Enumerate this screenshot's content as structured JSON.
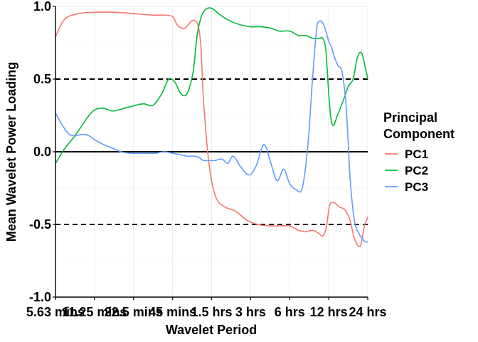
{
  "chart_data": {
    "type": "line",
    "title": "",
    "xlabel": "Wavelet Period",
    "ylabel": "Mean Wavelet Power Loading",
    "ylim": [
      -1.0,
      1.0
    ],
    "yticks": [
      -1.0,
      -0.5,
      0.0,
      0.5,
      1.0
    ],
    "ytick_labels": [
      "-1.0",
      "-0.5",
      "0.0",
      "0.5",
      "1.0"
    ],
    "xscale": "log2",
    "xlim_hours": [
      0.0938,
      24
    ],
    "xticks_hours": [
      0.09375,
      0.1875,
      0.375,
      0.75,
      1.5,
      3,
      6,
      12,
      24
    ],
    "xtick_labels": [
      "5.63 mins",
      "11.25 mins",
      "22.5 mins",
      "45 mins",
      "1.5 hrs",
      "3 hrs",
      "6 hrs",
      "12 hrs",
      "24 hrs"
    ],
    "hlines": [
      {
        "y": 0.5,
        "style": "dashed"
      },
      {
        "y": 0.0,
        "style": "solid"
      },
      {
        "y": -0.5,
        "style": "dashed"
      }
    ],
    "grid": true,
    "legend": {
      "title": "Principal Component",
      "position": "right"
    },
    "series": [
      {
        "name": "PC1",
        "color": "#F8766D",
        "x": [
          0.0938,
          0.11,
          0.14,
          0.19,
          0.27,
          0.38,
          0.53,
          0.64,
          0.75,
          0.82,
          0.93,
          1.05,
          1.12,
          1.18,
          1.24,
          1.3,
          1.4,
          1.5,
          1.65,
          1.9,
          2.3,
          2.8,
          3.4,
          4.2,
          5.0,
          6.0,
          7.0,
          8.0,
          9.0,
          10.0,
          10.8,
          11.5,
          12.2,
          13.2,
          14.5,
          16.0,
          17.5,
          19.0,
          21.0,
          22.5,
          24.0
        ],
        "y": [
          0.79,
          0.91,
          0.95,
          0.96,
          0.96,
          0.95,
          0.94,
          0.94,
          0.93,
          0.87,
          0.85,
          0.9,
          0.9,
          0.87,
          0.73,
          0.35,
          0.0,
          -0.2,
          -0.33,
          -0.38,
          -0.41,
          -0.47,
          -0.5,
          -0.51,
          -0.51,
          -0.51,
          -0.54,
          -0.55,
          -0.54,
          -0.56,
          -0.58,
          -0.52,
          -0.37,
          -0.35,
          -0.38,
          -0.4,
          -0.47,
          -0.6,
          -0.65,
          -0.52,
          -0.45
        ]
      },
      {
        "name": "PC2",
        "color": "#00BA38",
        "x": [
          0.0938,
          0.11,
          0.13,
          0.15,
          0.17,
          0.19,
          0.22,
          0.26,
          0.32,
          0.39,
          0.45,
          0.53,
          0.62,
          0.7,
          0.78,
          0.87,
          0.97,
          1.08,
          1.16,
          1.25,
          1.35,
          1.45,
          1.55,
          1.7,
          1.9,
          2.2,
          2.6,
          3.0,
          3.6,
          4.3,
          5.0,
          6.0,
          7.0,
          8.0,
          9.0,
          10.0,
          10.8,
          11.4,
          11.9,
          12.4,
          13.0,
          14.0,
          15.5,
          17.0,
          18.5,
          20.0,
          21.5,
          23.0,
          24.0
        ],
        "y": [
          -0.08,
          0.02,
          0.1,
          0.18,
          0.25,
          0.29,
          0.3,
          0.28,
          0.3,
          0.32,
          0.33,
          0.32,
          0.4,
          0.5,
          0.48,
          0.4,
          0.4,
          0.55,
          0.8,
          0.93,
          0.98,
          0.99,
          0.98,
          0.95,
          0.92,
          0.89,
          0.87,
          0.86,
          0.86,
          0.85,
          0.83,
          0.83,
          0.8,
          0.8,
          0.78,
          0.78,
          0.78,
          0.7,
          0.45,
          0.25,
          0.18,
          0.25,
          0.35,
          0.45,
          0.5,
          0.65,
          0.68,
          0.58,
          0.5
        ]
      },
      {
        "name": "PC3",
        "color": "#619CFF",
        "x": [
          0.0938,
          0.1,
          0.11,
          0.12,
          0.135,
          0.15,
          0.17,
          0.19,
          0.22,
          0.25,
          0.3,
          0.36,
          0.45,
          0.55,
          0.65,
          0.75,
          0.85,
          0.97,
          1.1,
          1.2,
          1.3,
          1.45,
          1.6,
          1.8,
          2.0,
          2.2,
          2.5,
          2.9,
          3.3,
          3.8,
          4.3,
          4.8,
          5.4,
          6.0,
          6.7,
          7.5,
          8.3,
          9.0,
          9.7,
          10.3,
          10.9,
          11.5,
          12.0,
          12.6,
          13.3,
          14.2,
          15.2,
          16.4,
          17.6,
          19.0,
          20.5,
          21.8,
          23.0,
          24.0
        ],
        "y": [
          0.27,
          0.22,
          0.16,
          0.12,
          0.11,
          0.12,
          0.11,
          0.08,
          0.05,
          0.03,
          0.0,
          -0.01,
          -0.01,
          -0.01,
          0.0,
          -0.01,
          -0.02,
          -0.03,
          -0.03,
          -0.04,
          -0.06,
          -0.06,
          -0.06,
          -0.05,
          -0.08,
          -0.03,
          -0.1,
          -0.16,
          -0.1,
          0.05,
          -0.08,
          -0.2,
          -0.12,
          -0.22,
          -0.26,
          -0.25,
          0.05,
          0.5,
          0.85,
          0.9,
          0.88,
          0.82,
          0.76,
          0.72,
          0.65,
          0.59,
          0.55,
          0.3,
          -0.2,
          -0.48,
          -0.56,
          -0.6,
          -0.62,
          -0.62
        ]
      }
    ]
  }
}
